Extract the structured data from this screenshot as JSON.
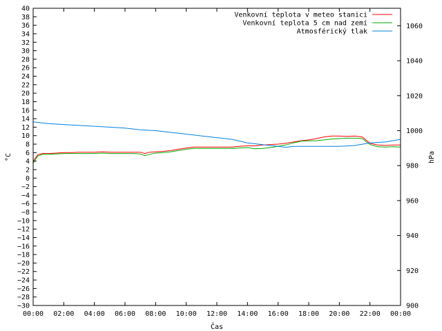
{
  "chart_data": {
    "type": "line",
    "xlabel": "Čas",
    "ylabel": "°C",
    "y2label": "hPa",
    "x_ticks": [
      "00:00",
      "02:00",
      "04:00",
      "06:00",
      "08:00",
      "10:00",
      "12:00",
      "14:00",
      "16:00",
      "18:00",
      "20:00",
      "22:00",
      "00:00"
    ],
    "xlim": [
      0,
      24
    ],
    "ylim": [
      -30,
      40
    ],
    "y_tick_step": 2,
    "y2lim": [
      900,
      1070
    ],
    "y2_ticks": [
      900,
      920,
      940,
      960,
      980,
      1000,
      1020,
      1040,
      1060
    ],
    "grid": false,
    "legend_position": "top-right",
    "series": [
      {
        "name": "Venkovní teplota v meteo stanici",
        "color": "#ff0000",
        "axis": "left",
        "x": [
          0,
          0.3,
          0.6,
          1,
          1.5,
          2,
          2.5,
          3,
          3.5,
          4,
          4.5,
          5,
          5.5,
          6,
          6.5,
          7,
          7.3,
          7.6,
          8,
          8.5,
          9,
          9.5,
          10,
          10.5,
          11,
          11.5,
          12,
          12.5,
          13,
          13.5,
          14,
          14.5,
          15,
          15.5,
          16,
          16.5,
          17,
          17.5,
          18,
          18.5,
          19,
          19.5,
          20,
          20.5,
          21,
          21.5,
          22,
          22.5,
          23,
          23.5,
          24
        ],
        "y": [
          4,
          5.5,
          5.8,
          5.8,
          5.9,
          6,
          6,
          6.1,
          6.1,
          6.1,
          6.2,
          6.1,
          6.1,
          6.1,
          6.1,
          6.1,
          5.8,
          6.1,
          6.2,
          6.3,
          6.5,
          6.8,
          7.1,
          7.3,
          7.3,
          7.3,
          7.3,
          7.3,
          7.3,
          7.5,
          7.6,
          7.6,
          7.8,
          7.9,
          8,
          8.2,
          8.5,
          8.8,
          9,
          9.3,
          9.7,
          9.9,
          9.9,
          9.8,
          9.9,
          9.7,
          8.2,
          7.8,
          7.7,
          7.8,
          7.8
        ]
      },
      {
        "name": "Venkovní teplota 5 cm nad zemí",
        "color": "#00aa00",
        "axis": "left",
        "x": [
          0,
          0.3,
          0.6,
          1,
          1.5,
          2,
          2.5,
          3,
          3.5,
          4,
          4.5,
          5,
          5.5,
          6,
          6.5,
          7,
          7.3,
          7.6,
          8,
          8.5,
          9,
          9.5,
          10,
          10.5,
          11,
          11.5,
          12,
          12.5,
          13,
          13.5,
          14,
          14.5,
          15,
          15.5,
          16,
          16.5,
          17,
          17.5,
          18,
          18.5,
          19,
          19.5,
          20,
          20.5,
          21,
          21.5,
          22,
          22.5,
          23,
          23.5,
          24
        ],
        "y": [
          3.5,
          5.2,
          5.6,
          5.6,
          5.7,
          5.8,
          5.8,
          5.8,
          5.8,
          5.8,
          5.9,
          5.8,
          5.8,
          5.8,
          5.8,
          5.7,
          5.3,
          5.6,
          5.9,
          6,
          6.2,
          6.5,
          6.8,
          7,
          7,
          7,
          7,
          7,
          7,
          7.1,
          7.2,
          6.9,
          7,
          7.2,
          7.5,
          7.8,
          8.3,
          8.7,
          8.8,
          8.8,
          9,
          9.2,
          9.3,
          9.4,
          9.4,
          9.3,
          7.9,
          7.4,
          7.3,
          7.4,
          7.3
        ]
      },
      {
        "name": "Atmosférický tlak",
        "color": "#0080e0",
        "axis": "right",
        "x": [
          0,
          1,
          2,
          3,
          4,
          5,
          6,
          7,
          8,
          9,
          10,
          11,
          12,
          13,
          14,
          15,
          16,
          16.5,
          17,
          18,
          19,
          20,
          21,
          22,
          23,
          24
        ],
        "y": [
          1005,
          1004,
          1003.5,
          1003,
          1002.5,
          1002,
          1001.5,
          1000.5,
          1000,
          999,
          998,
          997,
          996,
          995,
          993,
          992,
          991,
          990.5,
          991,
          991,
          991,
          991,
          991.5,
          993,
          993.5,
          995
        ]
      }
    ]
  }
}
